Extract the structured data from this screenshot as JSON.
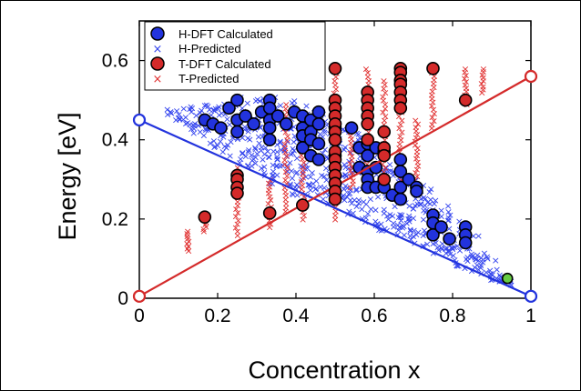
{
  "chart_data": {
    "type": "scatter",
    "xlabel": "Concentration x",
    "ylabel": "Energy [eV]",
    "xlim": [
      0,
      1
    ],
    "ylim": [
      0,
      0.7
    ],
    "x_ticks": [
      0,
      0.2,
      0.4,
      0.6,
      0.8,
      1
    ],
    "x_tick_labels": [
      "0",
      "0.2",
      "0.4",
      "0.6",
      "0.8",
      "1"
    ],
    "y_ticks": [
      0,
      0.2,
      0.4,
      0.6
    ],
    "y_tick_labels": [
      "0",
      "0.2",
      "0.4",
      "0.6"
    ],
    "grid": false,
    "legend_position": "top-left",
    "colors": {
      "h": "#2233dd",
      "t": "#d42a2a",
      "h_predicted": "#3344ee",
      "t_predicted": "#e03030",
      "special": "#66cc44",
      "outline": "#000000"
    },
    "series": [
      {
        "name": "H-DFT Calculated",
        "marker": "filled-circle",
        "points": [
          [
            0.167,
            0.45
          ],
          [
            0.188,
            0.44
          ],
          [
            0.208,
            0.43
          ],
          [
            0.229,
            0.48
          ],
          [
            0.25,
            0.5
          ],
          [
            0.25,
            0.45
          ],
          [
            0.25,
            0.42
          ],
          [
            0.271,
            0.46
          ],
          [
            0.292,
            0.44
          ],
          [
            0.312,
            0.47
          ],
          [
            0.333,
            0.5
          ],
          [
            0.333,
            0.48
          ],
          [
            0.333,
            0.45
          ],
          [
            0.333,
            0.43
          ],
          [
            0.333,
            0.4
          ],
          [
            0.354,
            0.46
          ],
          [
            0.375,
            0.44
          ],
          [
            0.396,
            0.47
          ],
          [
            0.417,
            0.43
          ],
          [
            0.417,
            0.46
          ],
          [
            0.417,
            0.41
          ],
          [
            0.417,
            0.38
          ],
          [
            0.438,
            0.45
          ],
          [
            0.438,
            0.42
          ],
          [
            0.438,
            0.4
          ],
          [
            0.438,
            0.36
          ],
          [
            0.458,
            0.47
          ],
          [
            0.458,
            0.44
          ],
          [
            0.458,
            0.39
          ],
          [
            0.458,
            0.35
          ],
          [
            0.5,
            0.43
          ],
          [
            0.5,
            0.4
          ],
          [
            0.5,
            0.36
          ],
          [
            0.542,
            0.43
          ],
          [
            0.562,
            0.38
          ],
          [
            0.562,
            0.33
          ],
          [
            0.583,
            0.39
          ],
          [
            0.583,
            0.36
          ],
          [
            0.583,
            0.32
          ],
          [
            0.583,
            0.3
          ],
          [
            0.583,
            0.28
          ],
          [
            0.604,
            0.38
          ],
          [
            0.604,
            0.33
          ],
          [
            0.604,
            0.28
          ],
          [
            0.625,
            0.37
          ],
          [
            0.625,
            0.3
          ],
          [
            0.625,
            0.28
          ],
          [
            0.646,
            0.26
          ],
          [
            0.667,
            0.35
          ],
          [
            0.667,
            0.32
          ],
          [
            0.667,
            0.28
          ],
          [
            0.667,
            0.25
          ],
          [
            0.688,
            0.3
          ],
          [
            0.708,
            0.28
          ],
          [
            0.708,
            0.27
          ],
          [
            0.75,
            0.21
          ],
          [
            0.75,
            0.19
          ],
          [
            0.75,
            0.16
          ],
          [
            0.771,
            0.18
          ],
          [
            0.792,
            0.15
          ],
          [
            0.833,
            0.18
          ],
          [
            0.833,
            0.16
          ],
          [
            0.833,
            0.14
          ]
        ]
      },
      {
        "name": "H-Predicted",
        "marker": "x",
        "band": [
          [
            0.08,
            0.46,
            0.48
          ],
          [
            0.1,
            0.45,
            0.48
          ],
          [
            0.12,
            0.43,
            0.48
          ],
          [
            0.14,
            0.41,
            0.49
          ],
          [
            0.16,
            0.4,
            0.49
          ],
          [
            0.18,
            0.39,
            0.49
          ],
          [
            0.2,
            0.38,
            0.5
          ],
          [
            0.22,
            0.37,
            0.5
          ],
          [
            0.24,
            0.35,
            0.5
          ],
          [
            0.26,
            0.34,
            0.51
          ],
          [
            0.28,
            0.33,
            0.51
          ],
          [
            0.3,
            0.31,
            0.51
          ],
          [
            0.32,
            0.3,
            0.51
          ],
          [
            0.34,
            0.29,
            0.51
          ],
          [
            0.36,
            0.28,
            0.5
          ],
          [
            0.38,
            0.27,
            0.5
          ],
          [
            0.4,
            0.26,
            0.5
          ],
          [
            0.42,
            0.26,
            0.49
          ],
          [
            0.44,
            0.25,
            0.48
          ],
          [
            0.46,
            0.25,
            0.47
          ],
          [
            0.48,
            0.24,
            0.46
          ],
          [
            0.5,
            0.23,
            0.45
          ],
          [
            0.52,
            0.22,
            0.44
          ],
          [
            0.54,
            0.21,
            0.43
          ],
          [
            0.56,
            0.2,
            0.42
          ],
          [
            0.58,
            0.19,
            0.4
          ],
          [
            0.6,
            0.18,
            0.39
          ],
          [
            0.62,
            0.17,
            0.38
          ],
          [
            0.64,
            0.16,
            0.36
          ],
          [
            0.66,
            0.16,
            0.35
          ],
          [
            0.68,
            0.15,
            0.33
          ],
          [
            0.7,
            0.14,
            0.31
          ],
          [
            0.72,
            0.13,
            0.3
          ],
          [
            0.74,
            0.12,
            0.28
          ],
          [
            0.76,
            0.11,
            0.26
          ],
          [
            0.78,
            0.1,
            0.24
          ],
          [
            0.8,
            0.09,
            0.22
          ],
          [
            0.82,
            0.08,
            0.2
          ],
          [
            0.84,
            0.07,
            0.18
          ],
          [
            0.86,
            0.06,
            0.16
          ],
          [
            0.88,
            0.05,
            0.13
          ],
          [
            0.9,
            0.04,
            0.1
          ],
          [
            0.92,
            0.03,
            0.08
          ],
          [
            0.94,
            0.03,
            0.06
          ]
        ]
      },
      {
        "name": "T-DFT Calculated",
        "marker": "filled-circle",
        "points": [
          [
            0.167,
            0.205
          ],
          [
            0.25,
            0.31
          ],
          [
            0.25,
            0.3
          ],
          [
            0.25,
            0.28
          ],
          [
            0.25,
            0.265
          ],
          [
            0.333,
            0.215
          ],
          [
            0.417,
            0.235
          ],
          [
            0.5,
            0.58
          ],
          [
            0.5,
            0.5
          ],
          [
            0.5,
            0.48
          ],
          [
            0.5,
            0.46
          ],
          [
            0.5,
            0.44
          ],
          [
            0.5,
            0.42
          ],
          [
            0.5,
            0.4
          ],
          [
            0.5,
            0.37
          ],
          [
            0.5,
            0.35
          ],
          [
            0.5,
            0.33
          ],
          [
            0.5,
            0.31
          ],
          [
            0.5,
            0.29
          ],
          [
            0.5,
            0.27
          ],
          [
            0.5,
            0.25
          ],
          [
            0.583,
            0.52
          ],
          [
            0.583,
            0.5
          ],
          [
            0.583,
            0.48
          ],
          [
            0.583,
            0.46
          ],
          [
            0.583,
            0.44
          ],
          [
            0.583,
            0.4
          ],
          [
            0.625,
            0.42
          ],
          [
            0.625,
            0.38
          ],
          [
            0.625,
            0.36
          ],
          [
            0.625,
            0.3
          ],
          [
            0.667,
            0.58
          ],
          [
            0.667,
            0.57
          ],
          [
            0.667,
            0.55
          ],
          [
            0.667,
            0.54
          ],
          [
            0.667,
            0.52
          ],
          [
            0.667,
            0.5
          ],
          [
            0.667,
            0.48
          ],
          [
            0.75,
            0.58
          ],
          [
            0.833,
            0.5
          ]
        ]
      },
      {
        "name": "T-Predicted",
        "marker": "x",
        "stacks": [
          [
            0.125,
            0.12,
            0.17
          ],
          [
            0.167,
            0.17,
            0.21
          ],
          [
            0.25,
            0.16,
            0.33
          ],
          [
            0.333,
            0.18,
            0.3
          ],
          [
            0.375,
            0.22,
            0.49
          ],
          [
            0.417,
            0.2,
            0.4
          ],
          [
            0.5,
            0.2,
            0.58
          ],
          [
            0.542,
            0.28,
            0.42
          ],
          [
            0.583,
            0.3,
            0.58
          ],
          [
            0.625,
            0.28,
            0.55
          ],
          [
            0.667,
            0.26,
            0.59
          ],
          [
            0.708,
            0.3,
            0.45
          ],
          [
            0.75,
            0.43,
            0.58
          ],
          [
            0.833,
            0.49,
            0.58
          ],
          [
            0.875,
            0.52,
            0.58
          ]
        ]
      }
    ],
    "special_point": [
      0.94,
      0.05
    ],
    "lines": [
      {
        "name": "H",
        "from": [
          0,
          0.45
        ],
        "to": [
          1,
          0.005
        ]
      },
      {
        "name": "T",
        "from": [
          0,
          0.005
        ],
        "to": [
          1,
          0.56
        ]
      }
    ]
  }
}
